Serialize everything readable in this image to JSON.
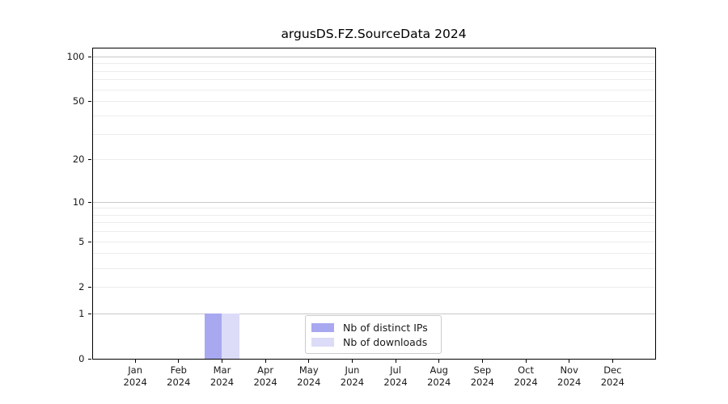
{
  "chart_data": {
    "type": "bar",
    "title": "argusDS.FZ.SourceData 2024",
    "categories": [
      "Jan",
      "Feb",
      "Mar",
      "Apr",
      "May",
      "Jun",
      "Jul",
      "Aug",
      "Sep",
      "Oct",
      "Nov",
      "Dec"
    ],
    "x_year_line": "2024",
    "series": [
      {
        "name": "Nb of distinct IPs",
        "color": "#a8a8f0",
        "values": [
          0,
          0,
          1,
          0,
          0,
          0,
          0,
          0,
          0,
          0,
          0,
          0
        ]
      },
      {
        "name": "Nb of downloads",
        "color": "#dcdcf8",
        "values": [
          0,
          0,
          1,
          0,
          0,
          0,
          0,
          0,
          0,
          0,
          0,
          0
        ]
      }
    ],
    "yscale": "log1p",
    "ylim": [
      0,
      115
    ],
    "yticks": [
      0,
      1,
      2,
      5,
      10,
      20,
      50,
      100
    ],
    "grid": "horizontal",
    "grid_major_lines": [
      1,
      10,
      100
    ],
    "grid_minor_lines": [
      2,
      3,
      4,
      5,
      6,
      7,
      8,
      9,
      20,
      30,
      40,
      50,
      60,
      70,
      80,
      90
    ],
    "legend_position": "bottom-center",
    "colors": {
      "spine": "#000000",
      "text": "#1a1a1a",
      "grid_major": "#c8c8c8",
      "grid_minor": "#ececec",
      "legend_border": "#cccccc"
    }
  }
}
